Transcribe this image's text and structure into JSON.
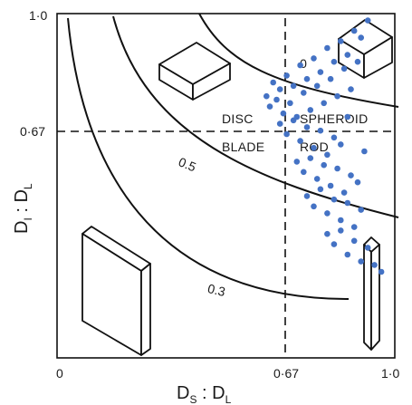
{
  "axes": {
    "x_ticks": [
      "0",
      "0·67",
      "1·0"
    ],
    "y_ticks": [
      "1·0",
      "0·67"
    ],
    "x_label": {
      "main": "D",
      "sub1": "S",
      "sep": " : D",
      "sub2": "L"
    },
    "y_label": {
      "main": "D",
      "sub1": "I",
      "sep": " : D",
      "sub2": "L"
    },
    "range": [
      0,
      1
    ],
    "divider": 0.67
  },
  "zones": {
    "disc": "DISC",
    "spheroid": "SPHEROID",
    "blade": "BLADE",
    "rod": "ROD"
  },
  "curves": [
    {
      "label": "0.7",
      "visible_label": "0"
    },
    {
      "label": "0.5"
    },
    {
      "label": "0.3"
    }
  ],
  "colors": {
    "points": "#4472c4",
    "lines": "#111111"
  },
  "chart_data": {
    "type": "scatter",
    "xlim": [
      0,
      1
    ],
    "ylim": [
      0,
      1
    ],
    "x": [
      0.62,
      0.64,
      0.66,
      0.68,
      0.7,
      0.72,
      0.74,
      0.76,
      0.78,
      0.8,
      0.82,
      0.84,
      0.86,
      0.88,
      0.9,
      0.63,
      0.65,
      0.67,
      0.69,
      0.71,
      0.73,
      0.75,
      0.77,
      0.79,
      0.81,
      0.83,
      0.85,
      0.87,
      0.89,
      0.92,
      0.66,
      0.68,
      0.7,
      0.72,
      0.74,
      0.76,
      0.78,
      0.8,
      0.82,
      0.84,
      0.86,
      0.71,
      0.73,
      0.75,
      0.77,
      0.79,
      0.81,
      0.83,
      0.85,
      0.87,
      0.89,
      0.91,
      0.74,
      0.76,
      0.78,
      0.8,
      0.82,
      0.84,
      0.86,
      0.88,
      0.9,
      0.8,
      0.82,
      0.84,
      0.86,
      0.88,
      0.9,
      0.92,
      0.94,
      0.96
    ],
    "y": [
      0.76,
      0.8,
      0.78,
      0.82,
      0.79,
      0.85,
      0.81,
      0.87,
      0.83,
      0.9,
      0.86,
      0.92,
      0.88,
      0.95,
      0.93,
      0.73,
      0.75,
      0.71,
      0.74,
      0.7,
      0.77,
      0.72,
      0.79,
      0.74,
      0.81,
      0.76,
      0.84,
      0.78,
      0.86,
      0.98,
      0.68,
      0.65,
      0.69,
      0.63,
      0.67,
      0.61,
      0.66,
      0.59,
      0.64,
      0.62,
      0.7,
      0.57,
      0.54,
      0.58,
      0.52,
      0.56,
      0.5,
      0.55,
      0.48,
      0.53,
      0.51,
      0.6,
      0.47,
      0.44,
      0.49,
      0.42,
      0.46,
      0.4,
      0.45,
      0.38,
      0.43,
      0.36,
      0.33,
      0.37,
      0.3,
      0.34,
      0.28,
      0.32,
      0.27,
      0.25
    ]
  }
}
